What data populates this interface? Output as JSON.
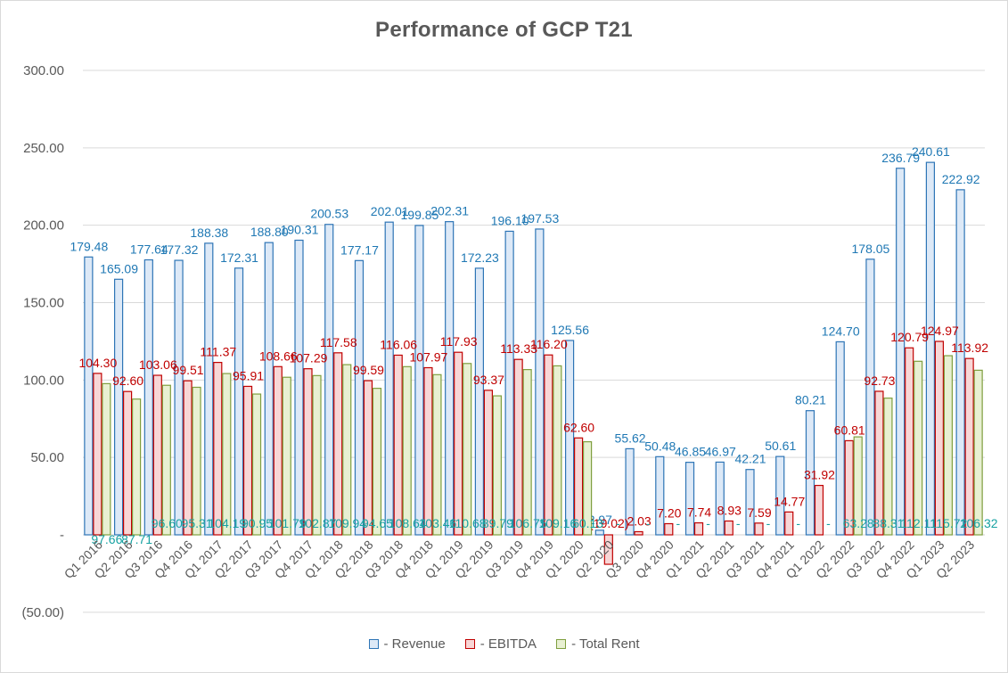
{
  "chart_data": {
    "type": "bar",
    "title": "Performance of GCP T21",
    "categories": [
      "Q1 2016",
      "Q2 2016",
      "Q3 2016",
      "Q4 2016",
      "Q1 2017",
      "Q2 2017",
      "Q3 2017",
      "Q4 2017",
      "Q1 2018",
      "Q2 2018",
      "Q3 2018",
      "Q4 2018",
      "Q1 2019",
      "Q2 2019",
      "Q3 2019",
      "Q4 2019",
      "Q1 2020",
      "Q2 2020",
      "Q3 2020",
      "Q4 2020",
      "Q1 2021",
      "Q2 2021",
      "Q3 2021",
      "Q4 2021",
      "Q1 2022",
      "Q2 2022",
      "Q3 2022",
      "Q4 2022",
      "Q1 2023",
      "Q2 2023"
    ],
    "ylim": [
      -50,
      300
    ],
    "yticks": [
      -50,
      0,
      50,
      100,
      150,
      200,
      250,
      300
    ],
    "ytick_labels": [
      "(50.00)",
      "-",
      "50.00",
      "100.00",
      "150.00",
      "200.00",
      "250.00",
      "300.00"
    ],
    "grid": true,
    "legend_position": "bottom",
    "series": [
      {
        "name": "- Revenue",
        "color": "#2e75b6",
        "fill": "#dde9f7",
        "label_color": "#1f78b4",
        "values": [
          179.48,
          165.09,
          177.64,
          177.32,
          188.38,
          172.31,
          188.8,
          190.31,
          200.53,
          177.17,
          202.01,
          199.85,
          202.31,
          172.23,
          196.1,
          197.53,
          125.56,
          2.97,
          55.62,
          50.48,
          46.85,
          46.97,
          42.21,
          50.61,
          80.21,
          124.7,
          178.05,
          236.79,
          240.61,
          222.92
        ],
        "labels": [
          "179.48",
          "165.09",
          "177.64",
          "177.32",
          "188.38",
          "172.31",
          "188.80",
          "190.31",
          "200.53",
          "177.17",
          "202.01",
          "199.85",
          "202.31",
          "172.23",
          "196.10",
          "197.53",
          "125.56",
          "2.97",
          "55.62",
          "50.48",
          "46.85",
          "46.97",
          "42.21",
          "50.61",
          "80.21",
          "124.70",
          "178.05",
          "236.79",
          "240.61",
          "222.92"
        ]
      },
      {
        "name": "- EBITDA",
        "color": "#c00000",
        "fill": "#f8d6d6",
        "label_color": "#c00000",
        "values": [
          104.3,
          92.6,
          103.06,
          99.51,
          111.37,
          95.91,
          108.66,
          107.29,
          117.58,
          99.59,
          116.06,
          107.97,
          117.93,
          93.37,
          113.33,
          116.2,
          62.6,
          -19.02,
          2.03,
          7.2,
          7.74,
          8.93,
          7.59,
          14.77,
          31.92,
          60.81,
          92.73,
          120.79,
          124.97,
          113.92
        ],
        "labels": [
          "104.30",
          "92.60",
          "103.06",
          "99.51",
          "111.37",
          "95.91",
          "108.66",
          "107.29",
          "117.58",
          "99.59",
          "116.06",
          "107.97",
          "117.93",
          "93.37",
          "113.33",
          "116.20",
          "62.60",
          "(19.02)",
          "2.03",
          "7.20",
          "7.74",
          "8.93",
          "7.59",
          "14.77",
          "31.92",
          "60.81",
          "92.73",
          "120.79",
          "124.97",
          "113.92"
        ]
      },
      {
        "name": "- Total Rent",
        "color": "#7f9f3f",
        "fill": "#e8f0d2",
        "label_color": "#17a2a2",
        "values": [
          97.66,
          87.71,
          96.6,
          95.31,
          104.19,
          90.95,
          101.79,
          102.87,
          109.94,
          94.65,
          108.64,
          103.46,
          110.68,
          89.79,
          106.75,
          109.16,
          60.13,
          0,
          0,
          0,
          0,
          0,
          0,
          0,
          0,
          63.28,
          88.31,
          112.11,
          115.72,
          106.32
        ],
        "labels": [
          "97.66",
          "87.71",
          "96.60",
          "95.31",
          "104.19",
          "90.95",
          "101.79",
          "102.87",
          "109.94",
          "94.65",
          "108.64",
          "103.46",
          "110.68",
          "89.79",
          "106.75",
          "109.16",
          "60.13",
          "-",
          "-",
          "-",
          "-",
          "-",
          "-",
          "-",
          "-",
          "63.28",
          "88.31",
          "112.11",
          "115.72",
          "106.32"
        ]
      }
    ]
  }
}
